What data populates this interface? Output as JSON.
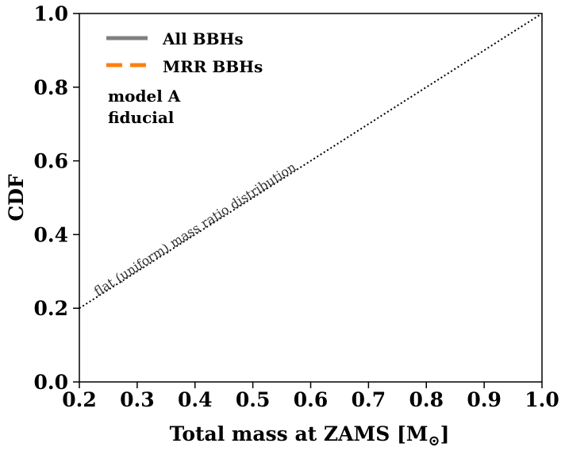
{
  "chart_data": {
    "type": "line",
    "xlabel": "Total mass at ZAMS [M",
    "xlabel_sub": "⊙",
    "xlabel_close": "]",
    "ylabel": "CDF",
    "xlim": [
      0.2,
      1.0
    ],
    "ylim": [
      0.0,
      1.0
    ],
    "x_ticks": [
      "0.2",
      "0.3",
      "0.4",
      "0.5",
      "0.6",
      "0.7",
      "0.8",
      "0.9",
      "1.0"
    ],
    "y_ticks": [
      "0.0",
      "0.2",
      "0.4",
      "0.6",
      "0.8",
      "1.0"
    ],
    "grid": false,
    "legend_placement": "upper-left",
    "series": [
      {
        "name": "All BBHs",
        "color": "#808080",
        "style": "solid",
        "x": [],
        "y": []
      },
      {
        "name": "MRR BBHs",
        "color": "#ff7f0e",
        "style": "dashed",
        "x": [],
        "y": []
      }
    ],
    "reference_line": {
      "label": "flat (uniform) mass ratio distribution",
      "style": "dotted",
      "color": "#000000",
      "x": [
        0.2,
        1.0
      ],
      "y": [
        0.2,
        1.0
      ]
    },
    "annotations": [
      "model A",
      "fiducial"
    ]
  }
}
